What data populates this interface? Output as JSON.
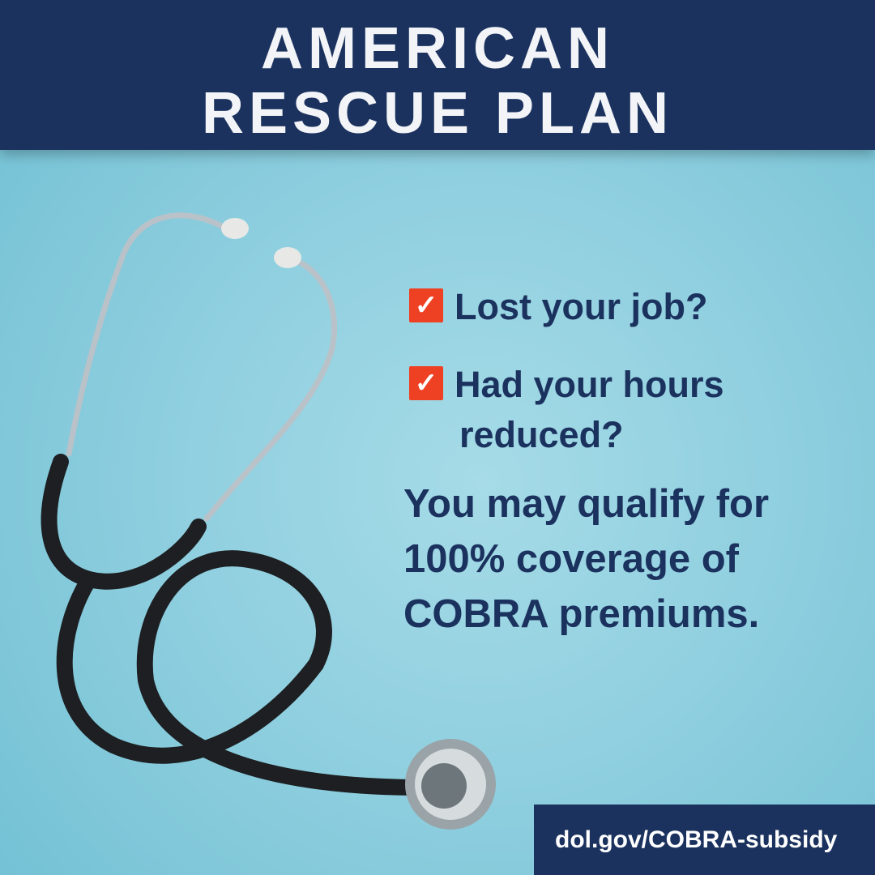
{
  "header": {
    "title_line1": "AMERICAN",
    "title_line2": "RESCUE PLAN"
  },
  "checklist": [
    {
      "icon": "checkbox-checked-icon",
      "label": "Lost your job?"
    },
    {
      "icon": "checkbox-checked-icon",
      "label_line1": "Had your hours",
      "label_line2": "reduced?"
    }
  ],
  "pitch": {
    "line1": "You may qualify for",
    "line2": "100% coverage of",
    "line3": "COBRA premiums."
  },
  "footer": {
    "url": "dol.gov/COBRA-subsidy"
  },
  "colors": {
    "navy": "#1b325e",
    "accent": "#ee4123",
    "background": "#8fcfdf"
  }
}
